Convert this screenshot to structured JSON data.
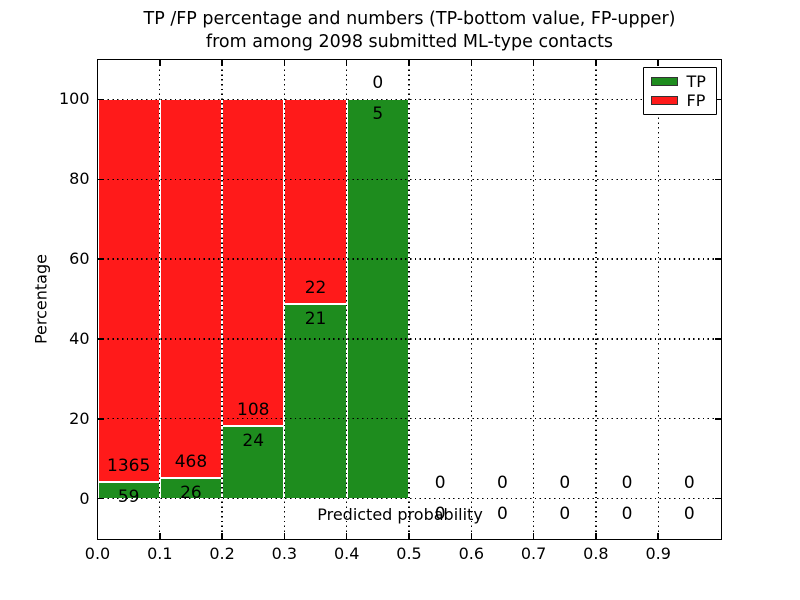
{
  "chart_data": {
    "type": "bar",
    "stacked": true,
    "percent_normalized": true,
    "title": "TP /FP percentage and numbers (TP-bottom value, FP-upper) from among 2098 submitted ML-type contacts",
    "title_line1": "TP /FP percentage and numbers (TP-bottom value, FP-upper)",
    "title_line2": "from among 2098 submitted ML-type contacts",
    "xlabel": "Predicted probability",
    "ylabel": "Percentage",
    "total_contacts": 2098,
    "xlim": [
      0.0,
      1.0
    ],
    "ylim": [
      -10,
      110
    ],
    "x_tick_labels": [
      "0.0",
      "0.1",
      "0.2",
      "0.3",
      "0.4",
      "0.5",
      "0.6",
      "0.7",
      "0.8",
      "0.9"
    ],
    "y_tick_values": [
      0,
      20,
      40,
      60,
      80,
      100
    ],
    "grid": true,
    "grid_style": "dotted, drawn above bars",
    "bin_width": 0.1,
    "bins": [
      {
        "x0": 0.0,
        "x1": 0.1,
        "tp": 59,
        "fp": 1365,
        "tp_pct": 4.14,
        "fp_pct": 95.86
      },
      {
        "x0": 0.1,
        "x1": 0.2,
        "tp": 26,
        "fp": 468,
        "tp_pct": 5.26,
        "fp_pct": 94.74
      },
      {
        "x0": 0.2,
        "x1": 0.3,
        "tp": 24,
        "fp": 108,
        "tp_pct": 18.18,
        "fp_pct": 81.82
      },
      {
        "x0": 0.3,
        "x1": 0.4,
        "tp": 21,
        "fp": 22,
        "tp_pct": 48.84,
        "fp_pct": 51.16
      },
      {
        "x0": 0.4,
        "x1": 0.5,
        "tp": 5,
        "fp": 0,
        "tp_pct": 100,
        "fp_pct": 0
      },
      {
        "x0": 0.5,
        "x1": 0.6,
        "tp": 0,
        "fp": 0,
        "tp_pct": 0,
        "fp_pct": 0
      },
      {
        "x0": 0.6,
        "x1": 0.7,
        "tp": 0,
        "fp": 0,
        "tp_pct": 0,
        "fp_pct": 0
      },
      {
        "x0": 0.7,
        "x1": 0.8,
        "tp": 0,
        "fp": 0,
        "tp_pct": 0,
        "fp_pct": 0
      },
      {
        "x0": 0.8,
        "x1": 0.9,
        "tp": 0,
        "fp": 0,
        "tp_pct": 0,
        "fp_pct": 0
      },
      {
        "x0": 0.9,
        "x1": 1.0,
        "tp": 0,
        "fp": 0,
        "tp_pct": 0,
        "fp_pct": 0
      }
    ],
    "legend": {
      "position": "upper right",
      "items": [
        {
          "label": "TP",
          "color": "#1E8C1E"
        },
        {
          "label": "FP",
          "color": "#FF1A1A"
        }
      ]
    },
    "colors": {
      "tp": "#1E8C1E",
      "fp": "#FF1A1A",
      "grid": "#000000",
      "text": "#000000",
      "axes_bg": "#FFFFFF",
      "fig_bg": "#FFFFFF"
    }
  }
}
